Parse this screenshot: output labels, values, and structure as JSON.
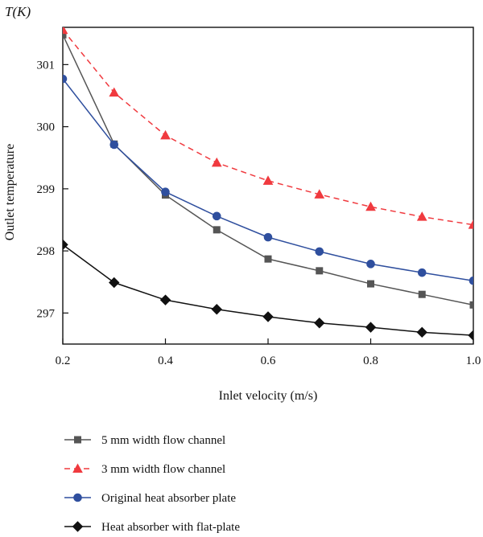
{
  "chart_data": {
    "type": "line",
    "title": "",
    "ylabel": "Outlet temperature",
    "yunit": "T(K)",
    "xlabel": "Inlet velocity (m/s)",
    "x": [
      0.2,
      0.3,
      0.4,
      0.5,
      0.6,
      0.7,
      0.8,
      0.9,
      1.0
    ],
    "xlim": [
      0.2,
      1.0
    ],
    "ylim": [
      296.5,
      301.6
    ],
    "xticks": [
      "0.2",
      "0.4",
      "0.6",
      "0.8",
      "1.0"
    ],
    "yticks": [
      "297",
      "298",
      "299",
      "300",
      "301"
    ],
    "xtick_values": [
      0.2,
      0.4,
      0.6,
      0.8,
      1.0
    ],
    "ytick_values": [
      297,
      298,
      299,
      300,
      301
    ],
    "grid": false,
    "legend_position": "bottom",
    "series": [
      {
        "name": "5 mm width flow channel",
        "color": "#555555",
        "marker": "square",
        "dash": false,
        "values": [
          301.48,
          299.72,
          298.9,
          298.34,
          297.87,
          297.68,
          297.47,
          297.3,
          297.13
        ]
      },
      {
        "name": "3 mm width flow channel",
        "color": "#f03a3f",
        "marker": "triangle",
        "dash": true,
        "values": [
          301.56,
          300.55,
          299.86,
          299.42,
          299.13,
          298.91,
          298.71,
          298.55,
          298.42
        ]
      },
      {
        "name": "Original heat absorber plate",
        "color": "#2f4f9e",
        "marker": "circle",
        "dash": false,
        "values": [
          300.77,
          299.71,
          298.95,
          298.56,
          298.22,
          297.99,
          297.79,
          297.65,
          297.52
        ]
      },
      {
        "name": "Heat absorber with flat-plate",
        "color": "#111111",
        "marker": "diamond",
        "dash": false,
        "values": [
          298.1,
          297.49,
          297.21,
          297.06,
          296.94,
          296.84,
          296.77,
          296.69,
          296.64
        ]
      }
    ]
  }
}
